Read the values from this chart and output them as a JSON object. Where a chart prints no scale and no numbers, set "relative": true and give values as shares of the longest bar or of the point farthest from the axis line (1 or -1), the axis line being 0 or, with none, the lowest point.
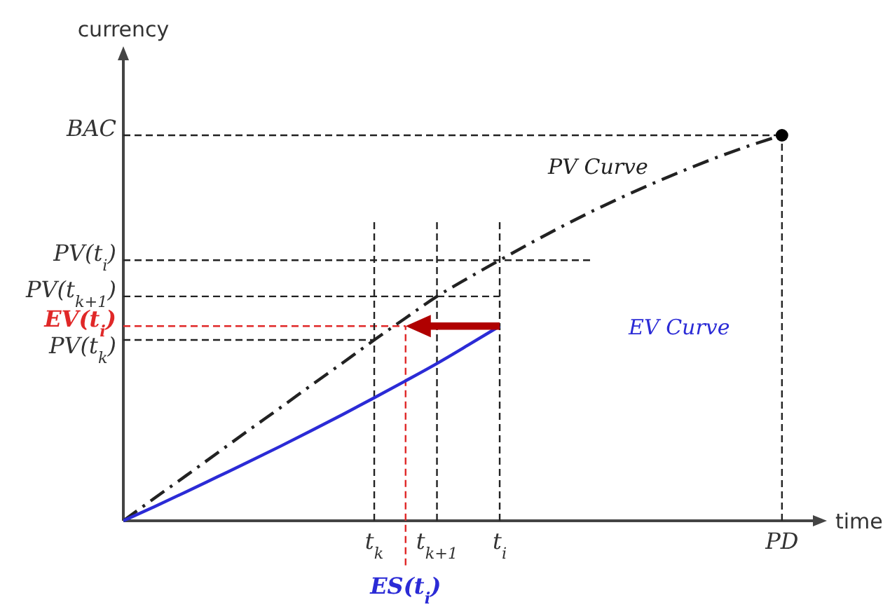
{
  "chart_data": {
    "type": "line",
    "relative": true,
    "xlabel": "time",
    "ylabel": "currency",
    "categories": [
      null,
      null,
      null,
      null,
      null,
      null,
      null,
      null,
      "t$_{k}$",
      "ES(t$_{i}$)",
      "t$_{k+1}$",
      null,
      "t$_{i}$",
      null,
      null,
      null,
      null,
      null,
      null,
      null,
      null,
      "PD"
    ],
    "series": [
      {
        "name": "BAC",
        "color": "#222222",
        "line_style": "dashed",
        "values": [
          1,
          1,
          1,
          1,
          1,
          1,
          1,
          1,
          1,
          1,
          1,
          1,
          1,
          1,
          1,
          1,
          1,
          1,
          1,
          1,
          1,
          1
        ]
      },
      {
        "name": "PV(t$_{i}$)",
        "color": "#222222",
        "line_style": "dashed",
        "values": [
          0.676,
          0.676,
          0.676,
          0.676,
          0.676,
          0.676,
          0.676,
          0.676,
          0.676,
          0.676,
          0.676,
          0.676,
          0.676,
          0.676,
          0.676,
          0.676,
          null,
          null,
          null,
          null,
          null,
          null
        ]
      },
      {
        "name": "PV(t$_{k+1}$)",
        "color": "#222222",
        "line_style": "dashed",
        "values": [
          0.582,
          0.582,
          0.582,
          0.582,
          0.582,
          0.582,
          0.582,
          0.582,
          0.582,
          0.582,
          0.582,
          0.582,
          0.582,
          null,
          null,
          null,
          null,
          null,
          null,
          null,
          null,
          null
        ]
      },
      {
        "name": "EV(t$_{i}$)",
        "color": "#e02828",
        "line_style": "dashed",
        "values": [
          0.505,
          0.505,
          0.505,
          0.505,
          0.505,
          0.505,
          0.505,
          0.505,
          0.505,
          0.505,
          null,
          null,
          null,
          null,
          null,
          null,
          null,
          null,
          null,
          null,
          null,
          null
        ]
      },
      {
        "name": "PV(t$_{k}$)",
        "color": "#222222",
        "line_style": "dashed",
        "values": [
          0.469,
          0.469,
          0.469,
          0.469,
          0.469,
          0.469,
          0.469,
          0.469,
          0.469,
          null,
          null,
          null,
          null,
          null,
          null,
          null,
          null,
          null,
          null,
          null,
          null,
          null
        ]
      },
      {
        "color": "#222222",
        "line_style": "dashed",
        "x": [
          "t$_{k}$",
          "t$_{k}$"
        ],
        "values": [
          0,
          0.778
        ]
      },
      {
        "color": "#222222",
        "line_style": "dashed",
        "x": [
          "t$_{k+1}$",
          "t$_{k+1}$"
        ],
        "values": [
          0,
          0.778
        ]
      },
      {
        "color": "#222222",
        "line_style": "dashed",
        "x": [
          "t$_{i}$",
          "t$_{i}$"
        ],
        "values": [
          0,
          0.778
        ]
      },
      {
        "color": "#222222",
        "line_style": "dashed",
        "x": [
          "PD",
          "PD"
        ],
        "values": [
          0,
          1
        ]
      },
      {
        "color": "#e02828",
        "line_style": "dashed",
        "x": [
          "ES(t$_{i}$)",
          "ES(t$_{i}$)"
        ],
        "values": [
          -0.116,
          0.505
        ]
      },
      {
        "name": "PV Curve",
        "color": "#222222",
        "line_style": "dashdot",
        "values": [
          0,
          0.059,
          0.117,
          0.176,
          0.235,
          0.293,
          0.352,
          0.41,
          0.469,
          0.526,
          0.582,
          0.63,
          0.676,
          0.721,
          0.764,
          0.805,
          0.843,
          0.879,
          0.913,
          0.945,
          0.974,
          1
        ]
      },
      {
        "name": "EV Curve",
        "color": "#2b2bd6",
        "line_style": "solid",
        "values": [
          0,
          0.037,
          0.075,
          0.114,
          0.153,
          0.193,
          0.234,
          0.276,
          0.319,
          0.363,
          0.408,
          0.456,
          0.505,
          null,
          null,
          null,
          null,
          null,
          null,
          null,
          null,
          null
        ]
      },
      {
        "type": "scatter",
        "color": "#000000",
        "marker": "circle",
        "x": [
          "PD"
        ],
        "values": [
          1
        ]
      }
    ]
  }
}
